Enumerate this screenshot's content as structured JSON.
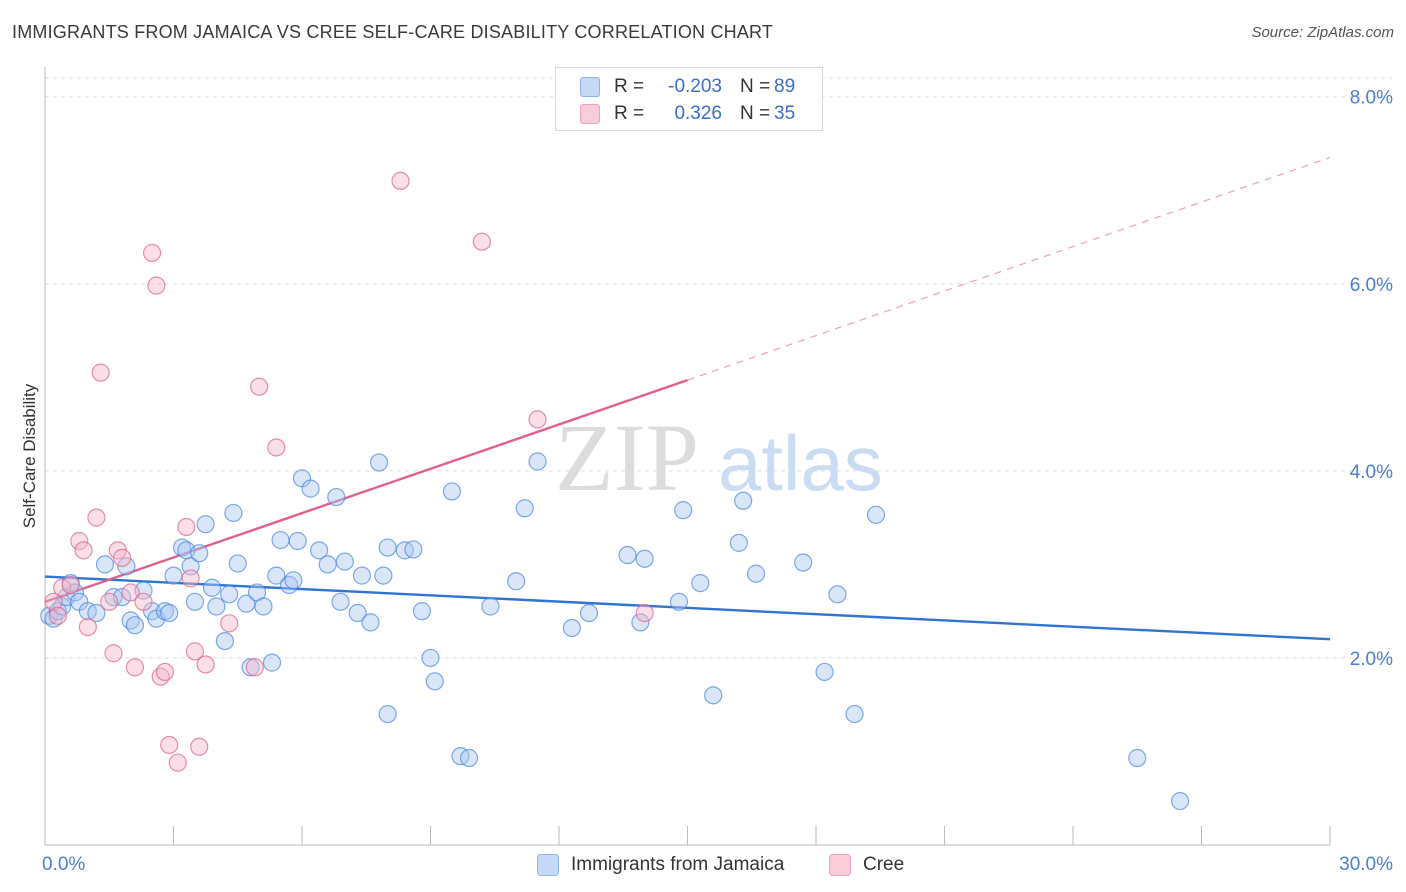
{
  "header": {
    "title": "IMMIGRANTS FROM JAMAICA VS CREE SELF-CARE DISABILITY CORRELATION CHART",
    "source": "Source: ZipAtlas.com"
  },
  "watermark": {
    "zip": "ZIP",
    "atlas": "atlas"
  },
  "legend": {
    "rows": [
      {
        "r_label": "R =",
        "r_value": "-0.203",
        "n_label": "N =",
        "n_value": "89",
        "color": "#a9c8f0"
      },
      {
        "r_label": "R =",
        "r_value": "0.326",
        "n_label": "N =",
        "n_value": "35",
        "color": "#f5b8ca"
      }
    ]
  },
  "bottom_legend": [
    {
      "label": "Immigrants from Jamaica",
      "color": "#a9c8f0"
    },
    {
      "label": "Cree",
      "color": "#f5b8ca"
    }
  ],
  "chart_data": {
    "type": "scatter",
    "title": "IMMIGRANTS FROM JAMAICA VS CREE SELF-CARE DISABILITY CORRELATION CHART",
    "xlabel": "",
    "ylabel": "Self-Care Disability",
    "xlim": [
      0,
      30
    ],
    "ylim": [
      0,
      8.2
    ],
    "x_tick_labels": [
      "0.0%",
      "30.0%"
    ],
    "y_ticks": [
      2,
      4,
      6,
      8
    ],
    "y_tick_labels": [
      "2.0%",
      "4.0%",
      "6.0%",
      "8.0%"
    ],
    "grid": true,
    "legend_placement": "top-center",
    "series": [
      {
        "name": "Immigrants from Jamaica",
        "color": "#4a86e0",
        "fill": "#a9c8f0",
        "trend": {
          "x0": 0,
          "y0": 2.87,
          "x1": 30,
          "y1": 2.2
        },
        "points": [
          [
            0.1,
            2.45
          ],
          [
            0.2,
            2.42
          ],
          [
            0.3,
            2.5
          ],
          [
            0.4,
            2.55
          ],
          [
            0.5,
            2.65
          ],
          [
            0.6,
            2.8
          ],
          [
            0.7,
            2.7
          ],
          [
            0.8,
            2.6
          ],
          [
            1.0,
            2.5
          ],
          [
            1.2,
            2.48
          ],
          [
            1.4,
            3.0
          ],
          [
            1.6,
            2.65
          ],
          [
            1.8,
            2.65
          ],
          [
            1.9,
            2.98
          ],
          [
            2.0,
            2.4
          ],
          [
            2.1,
            2.35
          ],
          [
            2.3,
            2.72
          ],
          [
            2.5,
            2.5
          ],
          [
            2.6,
            2.42
          ],
          [
            2.8,
            2.5
          ],
          [
            2.9,
            2.48
          ],
          [
            3.0,
            2.88
          ],
          [
            3.2,
            3.18
          ],
          [
            3.3,
            3.15
          ],
          [
            3.4,
            2.98
          ],
          [
            3.5,
            2.6
          ],
          [
            3.6,
            3.12
          ],
          [
            3.75,
            3.43
          ],
          [
            3.9,
            2.75
          ],
          [
            4.0,
            2.55
          ],
          [
            4.2,
            2.18
          ],
          [
            4.3,
            2.68
          ],
          [
            4.4,
            3.55
          ],
          [
            4.5,
            3.01
          ],
          [
            4.7,
            2.58
          ],
          [
            4.8,
            1.9
          ],
          [
            4.95,
            2.7
          ],
          [
            5.1,
            2.55
          ],
          [
            5.3,
            1.95
          ],
          [
            5.4,
            2.88
          ],
          [
            5.5,
            3.26
          ],
          [
            5.7,
            2.78
          ],
          [
            5.8,
            2.83
          ],
          [
            5.9,
            3.25
          ],
          [
            6.0,
            3.92
          ],
          [
            6.2,
            3.81
          ],
          [
            6.4,
            3.15
          ],
          [
            6.6,
            3.0
          ],
          [
            6.8,
            3.72
          ],
          [
            6.9,
            2.6
          ],
          [
            7.0,
            3.03
          ],
          [
            7.3,
            2.48
          ],
          [
            7.4,
            2.88
          ],
          [
            7.6,
            2.38
          ],
          [
            7.8,
            4.09
          ],
          [
            7.9,
            2.88
          ],
          [
            8.0,
            3.18
          ],
          [
            8.4,
            3.15
          ],
          [
            8.6,
            3.16
          ],
          [
            8.8,
            2.5
          ],
          [
            9.0,
            2.0
          ],
          [
            9.1,
            1.75
          ],
          [
            8.0,
            1.4
          ],
          [
            9.5,
            3.78
          ],
          [
            9.7,
            0.95
          ],
          [
            9.9,
            0.93
          ],
          [
            10.4,
            2.55
          ],
          [
            11.0,
            2.82
          ],
          [
            11.2,
            3.6
          ],
          [
            11.5,
            4.1
          ],
          [
            12.3,
            2.32
          ],
          [
            12.7,
            2.48
          ],
          [
            13.6,
            3.1
          ],
          [
            13.9,
            2.38
          ],
          [
            14.0,
            3.06
          ],
          [
            14.8,
            2.6
          ],
          [
            14.9,
            3.58
          ],
          [
            15.3,
            2.8
          ],
          [
            15.6,
            1.6
          ],
          [
            16.2,
            3.23
          ],
          [
            16.3,
            3.68
          ],
          [
            16.6,
            2.9
          ],
          [
            17.7,
            3.02
          ],
          [
            18.2,
            1.85
          ],
          [
            18.5,
            2.68
          ],
          [
            18.9,
            1.4
          ],
          [
            19.4,
            3.53
          ],
          [
            25.5,
            0.93
          ],
          [
            26.5,
            0.47
          ]
        ]
      },
      {
        "name": "Cree",
        "color": "#e0608a",
        "fill": "#f5b8ca",
        "trend": {
          "x0": 0,
          "y0": 2.6,
          "x1": 15,
          "y1": 4.97,
          "dash_to_x": 30,
          "dash_to_y": 7.35
        },
        "points": [
          [
            0.2,
            2.6
          ],
          [
            0.4,
            2.75
          ],
          [
            0.6,
            2.78
          ],
          [
            0.8,
            3.25
          ],
          [
            0.9,
            3.15
          ],
          [
            1.0,
            2.33
          ],
          [
            1.2,
            3.5
          ],
          [
            1.3,
            5.05
          ],
          [
            1.5,
            2.6
          ],
          [
            1.6,
            2.05
          ],
          [
            1.7,
            3.15
          ],
          [
            1.8,
            3.07
          ],
          [
            2.0,
            2.7
          ],
          [
            2.1,
            1.9
          ],
          [
            2.3,
            2.6
          ],
          [
            2.5,
            6.33
          ],
          [
            2.6,
            5.98
          ],
          [
            2.7,
            1.8
          ],
          [
            2.8,
            1.85
          ],
          [
            2.9,
            1.07
          ],
          [
            3.1,
            0.88
          ],
          [
            3.3,
            3.4
          ],
          [
            3.4,
            2.85
          ],
          [
            3.5,
            2.07
          ],
          [
            3.6,
            1.05
          ],
          [
            3.75,
            1.93
          ],
          [
            4.3,
            2.37
          ],
          [
            4.9,
            1.9
          ],
          [
            5.0,
            4.9
          ],
          [
            5.4,
            4.25
          ],
          [
            8.3,
            7.1
          ],
          [
            10.2,
            6.45
          ],
          [
            11.5,
            4.55
          ],
          [
            14.0,
            2.48
          ],
          [
            0.3,
            2.45
          ]
        ]
      }
    ]
  }
}
